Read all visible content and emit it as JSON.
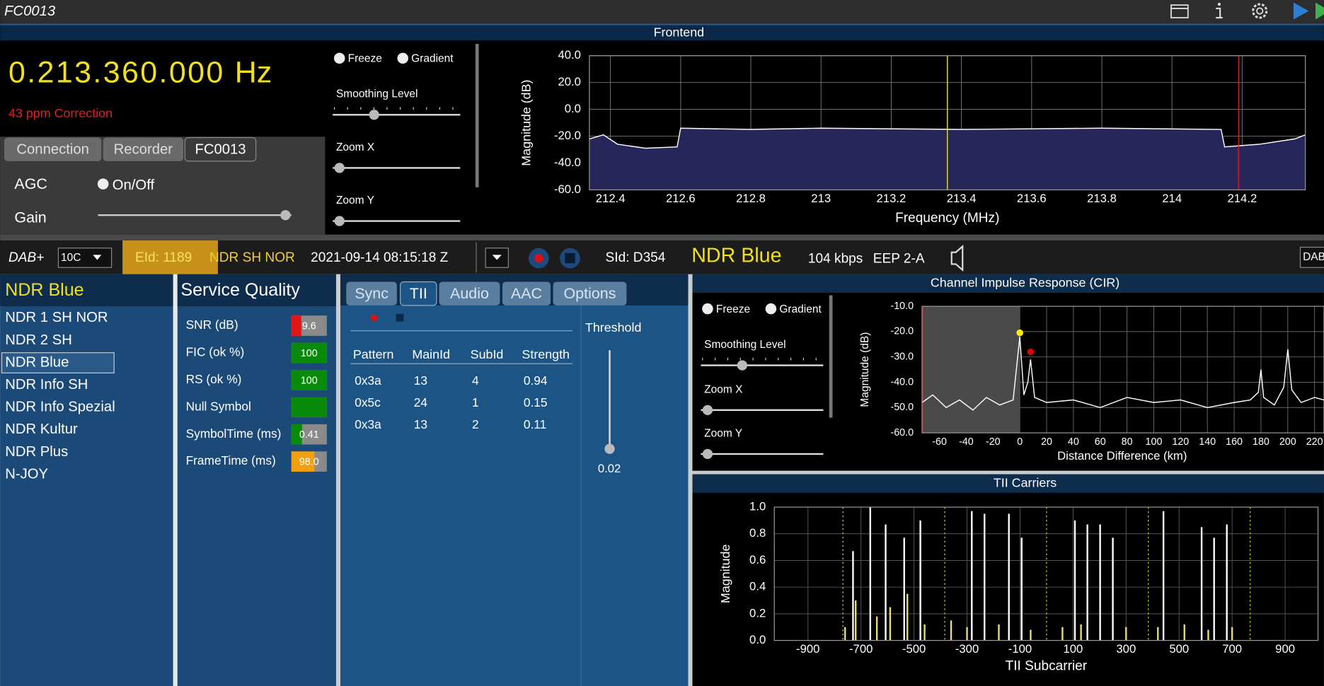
{
  "window": {
    "title": "FC0013"
  },
  "frontend": {
    "frequency": "0.213.360.000",
    "unit": "Hz",
    "correction": "43 ppm Correction",
    "tabs": [
      "Connection",
      "Recorder",
      "FC0013"
    ],
    "active_tab": 2,
    "agc": "AGC",
    "agc_toggle": "On/Off",
    "gain": "Gain",
    "options": [
      "Freeze",
      "Gradient"
    ],
    "sliders": [
      "Smoothing Level",
      "Zoom X",
      "Zoom Y"
    ]
  },
  "status": {
    "mode": "DAB+",
    "channel": "10C",
    "eid": "EId: 1189",
    "ensemble": "NDR SH NOR",
    "datetime": "2021-09-14  08:15:18 Z",
    "sid": "SId: D354",
    "service": "NDR Blue",
    "bitrate": "104 kbps",
    "protection": "EEP 2-A",
    "right_label": "DAB"
  },
  "services": {
    "title": "NDR Blue",
    "selected": 2,
    "items": [
      "NDR 1 SH NOR",
      "NDR 2 SH",
      "NDR Blue",
      "NDR Info SH",
      "NDR Info Spezial",
      "NDR Kultur",
      "NDR Plus",
      "N-JOY"
    ]
  },
  "quality": {
    "title": "Service Quality",
    "rows": [
      {
        "label": "SNR (dB)",
        "value": 9.6,
        "color": "#e01515"
      },
      {
        "label": "FIC (ok %)",
        "value": 100,
        "color": "#0a8a0a"
      },
      {
        "label": "RS (ok %)",
        "value": 100,
        "color": "#0a8a0a"
      },
      {
        "label": "Null Symbol",
        "color": "#0a8a0a"
      },
      {
        "label": "SymbolTime (ms)",
        "value": 0.41,
        "color": "#0a8a0a"
      },
      {
        "label": "FrameTime (ms)",
        "value": "98.0",
        "color": "#f0a010"
      }
    ]
  },
  "tii": {
    "tabs": [
      "Sync",
      "TII",
      "Audio",
      "AAC",
      "Options"
    ],
    "active_tab": 1,
    "columns": [
      "Pattern",
      "MainId",
      "SubId",
      "Strength"
    ],
    "rows": [
      [
        "0x3a",
        13,
        4,
        0.94
      ],
      [
        "0x5c",
        24,
        1,
        0.15
      ],
      [
        "0x3a",
        13,
        2,
        0.11
      ]
    ],
    "threshold_label": "Threshold",
    "threshold": 0.02
  },
  "cir_panel": {
    "options": [
      "Freeze",
      "Gradient"
    ],
    "sliders": [
      "Smoothing Level",
      "Zoom X",
      "Zoom Y"
    ]
  },
  "chart_data": [
    {
      "type": "line",
      "title": "Frontend",
      "xlabel": "Frequency (MHz)",
      "ylabel": "Magnitude (dB)",
      "xlim": [
        212.34,
        214.38
      ],
      "ylim": [
        -60,
        40
      ],
      "xticks": [
        212.4,
        212.6,
        212.8,
        213,
        213.2,
        213.4,
        213.6,
        213.8,
        214,
        214.2
      ],
      "yticks": [
        {
          "value": 40,
          "label": "40.0"
        },
        {
          "value": 20,
          "label": "20.0"
        },
        {
          "value": 0,
          "label": "0.0"
        },
        {
          "value": -20,
          "label": "-20.0"
        },
        {
          "value": -40,
          "label": "-40.0"
        },
        {
          "value": -60,
          "label": "-60.0"
        }
      ],
      "x": [
        212.34,
        212.38,
        212.42,
        212.5,
        212.59,
        212.6,
        212.8,
        213.0,
        213.4,
        213.8,
        214.14,
        214.15,
        214.25,
        214.35,
        214.38
      ],
      "values": [
        -22,
        -19,
        -26,
        -29,
        -28,
        -14,
        -15,
        -14,
        -15,
        -14,
        -15,
        -28,
        -26,
        -22,
        -19
      ],
      "color": "#ffffff",
      "fill": "#26265a",
      "cursors": [
        {
          "x": 213.36,
          "color": "#e6e600"
        },
        {
          "x": 214.19,
          "color": "#d02020"
        }
      ]
    },
    {
      "type": "line",
      "title": "Channel Impulse Response (CIR)",
      "xlabel": "Distance Difference (km)",
      "ylabel": "Magnitude (dB)",
      "xlim": [
        -73,
        227
      ],
      "ylim": [
        -60,
        -10
      ],
      "xticks": [
        -60,
        -40,
        -20,
        0,
        20,
        40,
        60,
        80,
        100,
        120,
        140,
        160,
        180,
        200,
        220
      ],
      "yticks": [
        {
          "value": -10,
          "label": "-10.0"
        },
        {
          "value": -20,
          "label": "-20.0"
        },
        {
          "value": -30,
          "label": "-30.0"
        },
        {
          "value": -40,
          "label": "-40.0"
        },
        {
          "value": -50,
          "label": "-50.0"
        },
        {
          "value": -60,
          "label": "-60.0"
        }
      ],
      "x": [
        -73,
        -65,
        -55,
        -45,
        -35,
        -25,
        -15,
        -5,
        0,
        3,
        6,
        8,
        11,
        20,
        40,
        60,
        80,
        100,
        120,
        140,
        160,
        172,
        178,
        180,
        182,
        190,
        197,
        200,
        203,
        210,
        220,
        227
      ],
      "values": [
        -48,
        -45,
        -50,
        -47,
        -51,
        -46,
        -49,
        -47,
        -22,
        -45,
        -40,
        -31,
        -46,
        -48,
        -47,
        -50,
        -46,
        -48,
        -47,
        -50,
        -48,
        -47,
        -44,
        -35,
        -46,
        -49,
        -42,
        -27,
        -43,
        -48,
        -46,
        -47
      ],
      "color": "#ffffff",
      "highlight": [
        -73,
        0
      ],
      "points": [
        {
          "x": 0,
          "y": -20.5,
          "color": "#ffee00"
        },
        {
          "x": 8,
          "y": -28,
          "color": "#e00000"
        }
      ]
    },
    {
      "type": "bar",
      "title": "TII Carriers",
      "xlabel": "TII Subcarrier",
      "ylabel": "Magnitude",
      "xlim": [
        -1027,
        1024
      ],
      "ylim": [
        0,
        1
      ],
      "xticks": [
        -900,
        -700,
        -500,
        -300,
        -100,
        100,
        300,
        500,
        700,
        900
      ],
      "yticks": [
        {
          "value": 0,
          "label": "0.0"
        },
        {
          "value": 0.2,
          "label": "0.2"
        },
        {
          "value": 0.4,
          "label": "0.4"
        },
        {
          "value": 0.6,
          "label": "0.6"
        },
        {
          "value": 0.8,
          "label": "0.8"
        },
        {
          "value": 1,
          "label": "1.0"
        }
      ],
      "series": [
        {
          "color": "#ffffff",
          "x": [
            -730,
            -665,
            -607,
            -537,
            -476,
            -282,
            -234,
            -142,
            -94,
            107,
            154,
            202,
            250,
            441,
            585,
            632,
            680
          ],
          "values": [
            0.67,
            1,
            0.87,
            0.77,
            0.9,
            0.97,
            0.95,
            0.95,
            0.77,
            0.9,
            0.87,
            0.87,
            0.77,
            0.97,
            0.85,
            0.77,
            0.87
          ]
        },
        {
          "color": "#e8e070",
          "x": [
            -760,
            -720,
            -640,
            -590,
            -525,
            -460,
            -360,
            -300,
            -180,
            -60,
            60,
            130,
            300,
            420,
            520,
            610,
            700
          ],
          "values": [
            0.1,
            0.3,
            0.18,
            0.25,
            0.35,
            0.12,
            0.15,
            0.1,
            0.12,
            0.08,
            0.1,
            0.12,
            0.1,
            0.1,
            0.12,
            0.08,
            0.1
          ]
        }
      ],
      "markers": [
        -768,
        -384,
        0,
        384,
        768
      ],
      "marker_color": "#d8d820"
    }
  ]
}
